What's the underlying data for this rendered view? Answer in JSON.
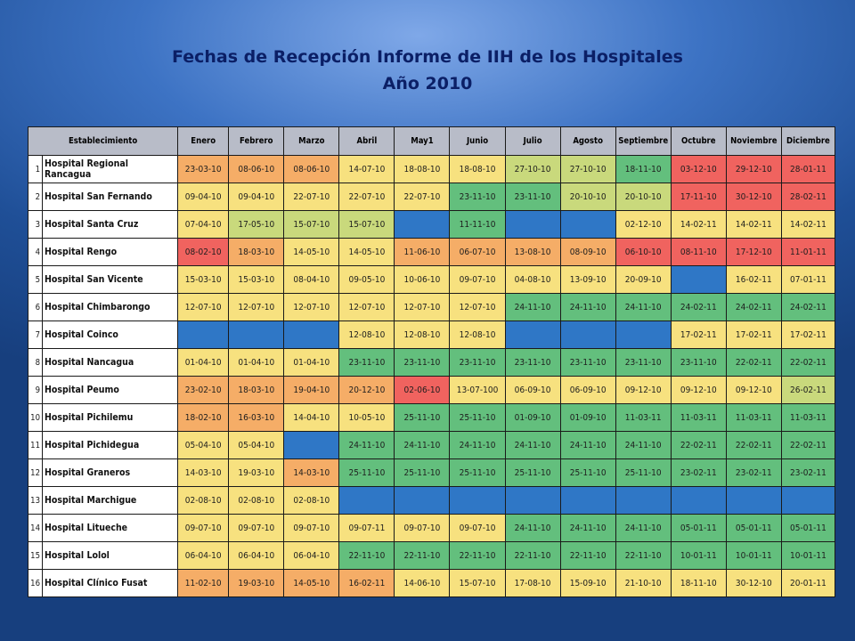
{
  "title_line1": "Fechas de Recepción Informe de IIH de los Hospitales",
  "title_line2": "Año 2010",
  "headers": [
    "Establecimiento",
    "Enero",
    "Febrero",
    "Marzo",
    "Abril",
    "May1",
    "Junio",
    "Julio",
    "Agosto",
    "Septiembre",
    "Octubre",
    "Noviembre",
    "Diciembre"
  ],
  "colors": {
    "r": "#f0635f",
    "o": "#f5ad67",
    "y": "#f7e17f",
    "l": "#c9d97c",
    "g": "#63bf7d",
    "b": "#2f77c6"
  },
  "rows": [
    {
      "n": "1",
      "name": "Hospital Regional Rancagua",
      "cells": [
        [
          "23-03-10",
          "o"
        ],
        [
          "08-06-10",
          "o"
        ],
        [
          "08-06-10",
          "o"
        ],
        [
          "14-07-10",
          "y"
        ],
        [
          "18-08-10",
          "y"
        ],
        [
          "18-08-10",
          "y"
        ],
        [
          "27-10-10",
          "l"
        ],
        [
          "27-10-10",
          "l"
        ],
        [
          "18-11-10",
          "g"
        ],
        [
          "03-12-10",
          "r"
        ],
        [
          "29-12-10",
          "r"
        ],
        [
          "28-01-11",
          "r"
        ]
      ]
    },
    {
      "n": "2",
      "name": "Hospital San Fernando",
      "cells": [
        [
          "09-04-10",
          "y"
        ],
        [
          "09-04-10",
          "y"
        ],
        [
          "22-07-10",
          "y"
        ],
        [
          "22-07-10",
          "y"
        ],
        [
          "22-07-10",
          "y"
        ],
        [
          "23-11-10",
          "g"
        ],
        [
          "23-11-10",
          "g"
        ],
        [
          "20-10-10",
          "l"
        ],
        [
          "20-10-10",
          "l"
        ],
        [
          "17-11-10",
          "r"
        ],
        [
          "30-12-10",
          "r"
        ],
        [
          "28-02-11",
          "r"
        ]
      ]
    },
    {
      "n": "3",
      "name": "Hospital Santa Cruz",
      "cells": [
        [
          "07-04-10",
          "y"
        ],
        [
          "17-05-10",
          "l"
        ],
        [
          "15-07-10",
          "l"
        ],
        [
          "15-07-10",
          "l"
        ],
        [
          "",
          "b"
        ],
        [
          "11-11-10",
          "g"
        ],
        [
          "",
          "b"
        ],
        [
          "",
          "b"
        ],
        [
          "02-12-10",
          "y"
        ],
        [
          "14-02-11",
          "y"
        ],
        [
          "14-02-11",
          "y"
        ],
        [
          "14-02-11",
          "y"
        ]
      ]
    },
    {
      "n": "4",
      "name": "Hospital Rengo",
      "cells": [
        [
          "08-02-10",
          "r"
        ],
        [
          "18-03-10",
          "o"
        ],
        [
          "14-05-10",
          "y"
        ],
        [
          "14-05-10",
          "y"
        ],
        [
          "11-06-10",
          "o"
        ],
        [
          "06-07-10",
          "o"
        ],
        [
          "13-08-10",
          "o"
        ],
        [
          "08-09-10",
          "o"
        ],
        [
          "06-10-10",
          "r"
        ],
        [
          "08-11-10",
          "r"
        ],
        [
          "17-12-10",
          "r"
        ],
        [
          "11-01-11",
          "r"
        ]
      ]
    },
    {
      "n": "5",
      "name": "Hospital San Vicente",
      "cells": [
        [
          "15-03-10",
          "y"
        ],
        [
          "15-03-10",
          "y"
        ],
        [
          "08-04-10",
          "y"
        ],
        [
          "09-05-10",
          "y"
        ],
        [
          "10-06-10",
          "y"
        ],
        [
          "09-07-10",
          "y"
        ],
        [
          "04-08-10",
          "y"
        ],
        [
          "13-09-10",
          "y"
        ],
        [
          "20-09-10",
          "y"
        ],
        [
          "",
          "b"
        ],
        [
          "16-02-11",
          "y"
        ],
        [
          "07-01-11",
          "y"
        ]
      ]
    },
    {
      "n": "6",
      "name": "Hospital Chimbarongo",
      "cells": [
        [
          "12-07-10",
          "y"
        ],
        [
          "12-07-10",
          "y"
        ],
        [
          "12-07-10",
          "y"
        ],
        [
          "12-07-10",
          "y"
        ],
        [
          "12-07-10",
          "y"
        ],
        [
          "12-07-10",
          "y"
        ],
        [
          "24-11-10",
          "g"
        ],
        [
          "24-11-10",
          "g"
        ],
        [
          "24-11-10",
          "g"
        ],
        [
          "24-02-11",
          "g"
        ],
        [
          "24-02-11",
          "g"
        ],
        [
          "24-02-11",
          "g"
        ]
      ]
    },
    {
      "n": "7",
      "name": "Hospital Coinco",
      "cells": [
        [
          "",
          "b"
        ],
        [
          "",
          "b"
        ],
        [
          "",
          "b"
        ],
        [
          "12-08-10",
          "y"
        ],
        [
          "12-08-10",
          "y"
        ],
        [
          "12-08-10",
          "y"
        ],
        [
          "",
          "b"
        ],
        [
          "",
          "b"
        ],
        [
          "",
          "b"
        ],
        [
          "17-02-11",
          "y"
        ],
        [
          "17-02-11",
          "y"
        ],
        [
          "17-02-11",
          "y"
        ]
      ]
    },
    {
      "n": "8",
      "name": "Hospital Nancagua",
      "cells": [
        [
          "01-04-10",
          "y"
        ],
        [
          "01-04-10",
          "y"
        ],
        [
          "01-04-10",
          "y"
        ],
        [
          "23-11-10",
          "g"
        ],
        [
          "23-11-10",
          "g"
        ],
        [
          "23-11-10",
          "g"
        ],
        [
          "23-11-10",
          "g"
        ],
        [
          "23-11-10",
          "g"
        ],
        [
          "23-11-10",
          "g"
        ],
        [
          "23-11-10",
          "g"
        ],
        [
          "22-02-11",
          "g"
        ],
        [
          "22-02-11",
          "g"
        ]
      ]
    },
    {
      "n": "9",
      "name": "Hospital Peumo",
      "cells": [
        [
          "23-02-10",
          "o"
        ],
        [
          "18-03-10",
          "o"
        ],
        [
          "19-04-10",
          "o"
        ],
        [
          "20-12-10",
          "o"
        ],
        [
          "02-06-10",
          "r"
        ],
        [
          "13-07-100",
          "y"
        ],
        [
          "06-09-10",
          "y"
        ],
        [
          "06-09-10",
          "y"
        ],
        [
          "09-12-10",
          "y"
        ],
        [
          "09-12-10",
          "y"
        ],
        [
          "09-12-10",
          "y"
        ],
        [
          "26-02-11",
          "l"
        ]
      ]
    },
    {
      "n": "10",
      "name": "Hospital Pichilemu",
      "cells": [
        [
          "18-02-10",
          "o"
        ],
        [
          "16-03-10",
          "o"
        ],
        [
          "14-04-10",
          "y"
        ],
        [
          "10-05-10",
          "y"
        ],
        [
          "25-11-10",
          "g"
        ],
        [
          "25-11-10",
          "g"
        ],
        [
          "01-09-10",
          "g"
        ],
        [
          "01-09-10",
          "g"
        ],
        [
          "11-03-11",
          "g"
        ],
        [
          "11-03-11",
          "g"
        ],
        [
          "11-03-11",
          "g"
        ],
        [
          "11-03-11",
          "g"
        ]
      ]
    },
    {
      "n": "11",
      "name": "Hospital Pichidegua",
      "cells": [
        [
          "05-04-10",
          "y"
        ],
        [
          "05-04-10",
          "y"
        ],
        [
          "",
          "b"
        ],
        [
          "24-11-10",
          "g"
        ],
        [
          "24-11-10",
          "g"
        ],
        [
          "24-11-10",
          "g"
        ],
        [
          "24-11-10",
          "g"
        ],
        [
          "24-11-10",
          "g"
        ],
        [
          "24-11-10",
          "g"
        ],
        [
          "22-02-11",
          "g"
        ],
        [
          "22-02-11",
          "g"
        ],
        [
          "22-02-11",
          "g"
        ]
      ]
    },
    {
      "n": "12",
      "name": "Hospital Graneros",
      "cells": [
        [
          "14-03-10",
          "y"
        ],
        [
          "19-03-10",
          "y"
        ],
        [
          "14-03-10",
          "o"
        ],
        [
          "25-11-10",
          "g"
        ],
        [
          "25-11-10",
          "g"
        ],
        [
          "25-11-10",
          "g"
        ],
        [
          "25-11-10",
          "g"
        ],
        [
          "25-11-10",
          "g"
        ],
        [
          "25-11-10",
          "g"
        ],
        [
          "23-02-11",
          "g"
        ],
        [
          "23-02-11",
          "g"
        ],
        [
          "23-02-11",
          "g"
        ]
      ]
    },
    {
      "n": "13",
      "name": "Hospital Marchigue",
      "cells": [
        [
          "02-08-10",
          "y"
        ],
        [
          "02-08-10",
          "y"
        ],
        [
          "02-08-10",
          "y"
        ],
        [
          "",
          "b"
        ],
        [
          "",
          "b"
        ],
        [
          "",
          "b"
        ],
        [
          "",
          "b"
        ],
        [
          "",
          "b"
        ],
        [
          "",
          "b"
        ],
        [
          "",
          "b"
        ],
        [
          "",
          "b"
        ],
        [
          "",
          "b"
        ]
      ]
    },
    {
      "n": "14",
      "name": "Hospital Litueche",
      "cells": [
        [
          "09-07-10",
          "y"
        ],
        [
          "09-07-10",
          "y"
        ],
        [
          "09-07-10",
          "y"
        ],
        [
          "09-07-11",
          "y"
        ],
        [
          "09-07-10",
          "y"
        ],
        [
          "09-07-10",
          "y"
        ],
        [
          "24-11-10",
          "g"
        ],
        [
          "24-11-10",
          "g"
        ],
        [
          "24-11-10",
          "g"
        ],
        [
          "05-01-11",
          "g"
        ],
        [
          "05-01-11",
          "g"
        ],
        [
          "05-01-11",
          "g"
        ]
      ]
    },
    {
      "n": "15",
      "name": "Hospital Lolol",
      "cells": [
        [
          "06-04-10",
          "y"
        ],
        [
          "06-04-10",
          "y"
        ],
        [
          "06-04-10",
          "y"
        ],
        [
          "22-11-10",
          "g"
        ],
        [
          "22-11-10",
          "g"
        ],
        [
          "22-11-10",
          "g"
        ],
        [
          "22-11-10",
          "g"
        ],
        [
          "22-11-10",
          "g"
        ],
        [
          "22-11-10",
          "g"
        ],
        [
          "10-01-11",
          "g"
        ],
        [
          "10-01-11",
          "g"
        ],
        [
          "10-01-11",
          "g"
        ]
      ]
    },
    {
      "n": "16",
      "name": "Hospital Clínico Fusat",
      "cells": [
        [
          "11-02-10",
          "o"
        ],
        [
          "19-03-10",
          "o"
        ],
        [
          "14-05-10",
          "o"
        ],
        [
          "16-02-11",
          "o"
        ],
        [
          "14-06-10",
          "y"
        ],
        [
          "15-07-10",
          "y"
        ],
        [
          "17-08-10",
          "y"
        ],
        [
          "15-09-10",
          "y"
        ],
        [
          "21-10-10",
          "y"
        ],
        [
          "18-11-10",
          "y"
        ],
        [
          "30-12-10",
          "y"
        ],
        [
          "20-01-11",
          "y"
        ]
      ]
    }
  ]
}
